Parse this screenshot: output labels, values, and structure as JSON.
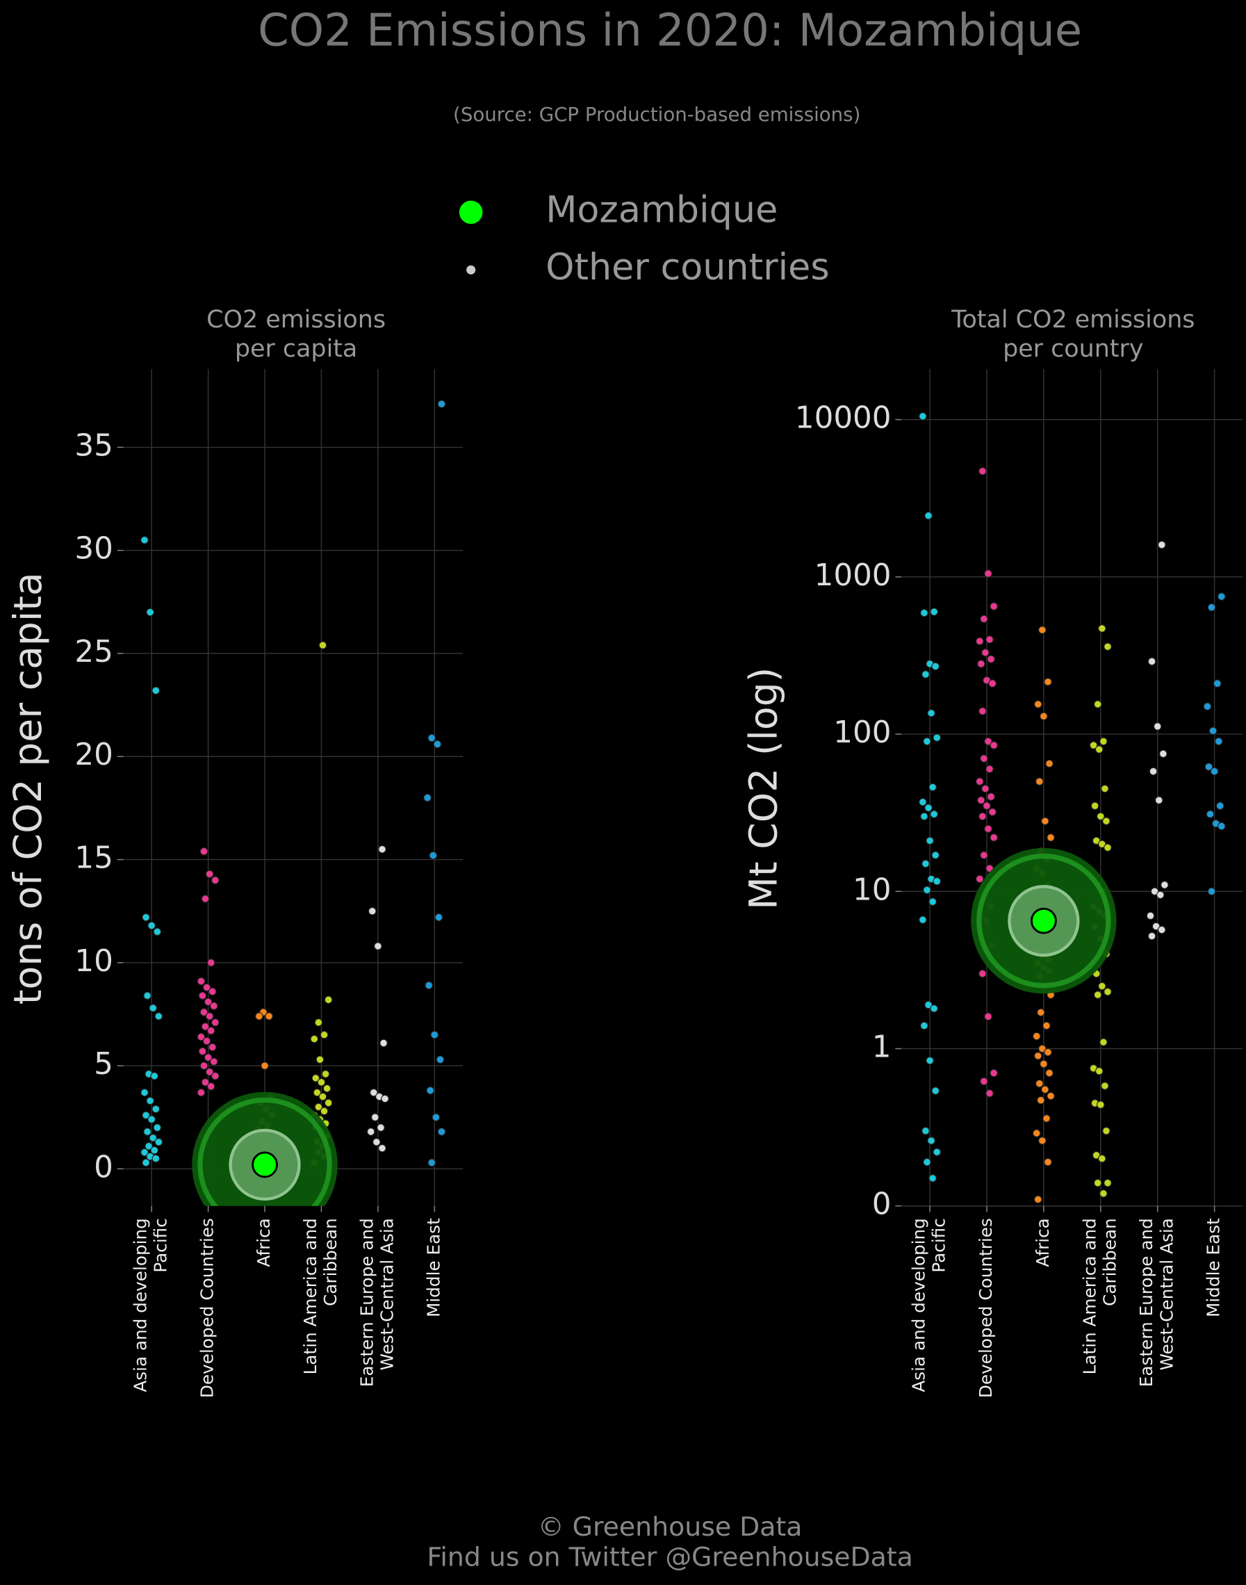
{
  "title": "CO2 Emissions in 2020: Mozambique",
  "subtitle": "(Source: GCP Production-based emissions)",
  "legend": [
    {
      "name": "Mozambique",
      "color": "#00ff00"
    },
    {
      "name": "Other countries",
      "color": "#cccccc"
    }
  ],
  "footer": [
    "© Greenhouse Data",
    "Find us on Twitter @GreenhouseData"
  ],
  "chart_data": [
    {
      "type": "strip",
      "title": [
        "CO2 emissions",
        "per capita"
      ],
      "y_label": "tons of CO2 per capita",
      "categories": [
        "Asia and developing\nPacific",
        "Developed Countries",
        "Africa",
        "Latin America and\nCaribbean",
        "Eastern Europe and\nWest-Central Asia",
        "Middle East"
      ],
      "colors": [
        "#1ec8d8",
        "#e8388f",
        "#f5861f",
        "#c2d622",
        "#dddddd",
        "#1f9ad8"
      ],
      "values": [
        [
          30.5,
          27.0,
          23.2,
          12.2,
          11.8,
          11.5,
          8.4,
          7.8,
          7.4,
          4.6,
          4.5,
          3.7,
          3.3,
          2.9,
          2.6,
          2.4,
          2.0,
          1.8,
          1.5,
          1.3,
          1.1,
          0.9,
          0.8,
          0.6,
          0.5,
          0.3
        ],
        [
          15.4,
          14.3,
          14.0,
          13.1,
          10.0,
          9.1,
          8.8,
          8.6,
          8.4,
          8.1,
          7.9,
          7.6,
          7.4,
          7.1,
          6.9,
          6.7,
          6.4,
          6.2,
          5.9,
          5.7,
          5.4,
          5.2,
          5.0,
          4.7,
          4.5,
          4.2,
          4.0,
          3.7,
          1.6
        ],
        [
          7.6,
          7.4,
          7.4,
          5.0,
          3.5,
          3.2,
          2.9,
          2.6,
          2.3,
          2.1,
          1.9,
          1.7,
          1.5,
          1.3,
          1.1,
          0.9,
          0.7,
          0.5,
          0.4,
          0.3,
          0.3,
          0.2,
          0.2,
          0.1,
          0.1,
          0.1,
          0.1,
          0.1,
          0.05
        ],
        [
          25.4,
          8.2,
          7.1,
          6.5,
          6.3,
          5.3,
          4.6,
          4.4,
          4.2,
          3.9,
          3.7,
          3.5,
          3.2,
          3.0,
          2.8,
          2.6,
          2.4,
          2.2,
          2.0,
          1.8,
          1.6,
          1.3,
          1.1,
          0.9,
          0.8,
          0.6,
          0.3
        ],
        [
          15.5,
          12.5,
          10.8,
          6.1,
          3.7,
          3.5,
          3.4,
          2.5,
          2.0,
          1.8,
          1.3,
          1.0
        ],
        [
          37.1,
          20.9,
          20.6,
          18.0,
          15.2,
          12.2,
          8.9,
          6.5,
          5.3,
          3.8,
          2.5,
          1.8,
          0.3
        ]
      ],
      "highlight": [
        null,
        null,
        0.2,
        null,
        null,
        null
      ],
      "ylim": [
        -1.8,
        38.8
      ],
      "yticks": [
        0,
        5,
        10,
        15,
        20,
        25,
        30,
        35
      ],
      "grid": true,
      "log": false
    },
    {
      "type": "strip",
      "title": [
        "Total CO2 emissions",
        "per country"
      ],
      "y_label": "Mt CO2 (log)",
      "categories": [
        "Asia and developing\nPacific",
        "Developed Countries",
        "Africa",
        "Latin America and\nCaribbean",
        "Eastern Europe and\nWest-Central Asia",
        "Middle East"
      ],
      "colors": [
        "#1ec8d8",
        "#e8388f",
        "#f5861f",
        "#c2d622",
        "#dddddd",
        "#1f9ad8"
      ],
      "values": [
        [
          10500,
          2450,
          600,
          590,
          280,
          270,
          240,
          136,
          95,
          90,
          46,
          37,
          34,
          31,
          30,
          21,
          17,
          15,
          12,
          11.6,
          10.2,
          8.6,
          6.6,
          1.9,
          1.8,
          1.4,
          0.84,
          0.54,
          0.3,
          0.26,
          0.22,
          0.19,
          0.15
        ],
        [
          4700,
          1050,
          650,
          540,
          400,
          390,
          330,
          300,
          280,
          220,
          210,
          140,
          90,
          85,
          70,
          60,
          50,
          45,
          40,
          38,
          35,
          32,
          30,
          25,
          22,
          17,
          14,
          12,
          10,
          8,
          6.8,
          6.5,
          4.5,
          3.0,
          1.6,
          0.7,
          0.62,
          0.52
        ],
        [
          460,
          215,
          155,
          130,
          65,
          50,
          28,
          22,
          18,
          16,
          14,
          13,
          11,
          10.5,
          10,
          9,
          8.5,
          7.5,
          6,
          5,
          4.7,
          4.2,
          3.9,
          3.7,
          3.5,
          3.3,
          3.1,
          2.9,
          2.5,
          2.2,
          1.7,
          1.4,
          1.2,
          1.0,
          0.95,
          0.9,
          0.8,
          0.7,
          0.6,
          0.55,
          0.5,
          0.47,
          0.36,
          0.29,
          0.26,
          0.19,
          0.11
        ],
        [
          470,
          360,
          155,
          90,
          85,
          80,
          45,
          35,
          30,
          28,
          21,
          20,
          19,
          11,
          10,
          8,
          7.5,
          7,
          6,
          5,
          4,
          3,
          2.5,
          2.3,
          2.2,
          1.1,
          0.75,
          0.72,
          0.58,
          0.45,
          0.44,
          0.3,
          0.21,
          0.2,
          0.14,
          0.14,
          0.12
        ],
        [
          1600,
          290,
          112,
          75,
          58,
          38,
          11,
          10,
          9.5,
          7,
          6,
          5.7,
          5.2
        ],
        [
          750,
          640,
          210,
          150,
          105,
          90,
          62,
          58,
          35,
          31,
          27,
          26,
          10
        ]
      ],
      "highlight": [
        null,
        null,
        6.5,
        null,
        null,
        null
      ],
      "ylim": [
        0.1,
        21000
      ],
      "yticks": [
        {
          "value": 0.1,
          "label": "0"
        },
        1,
        10,
        100,
        1000,
        10000
      ],
      "grid": true,
      "log": true
    }
  ]
}
